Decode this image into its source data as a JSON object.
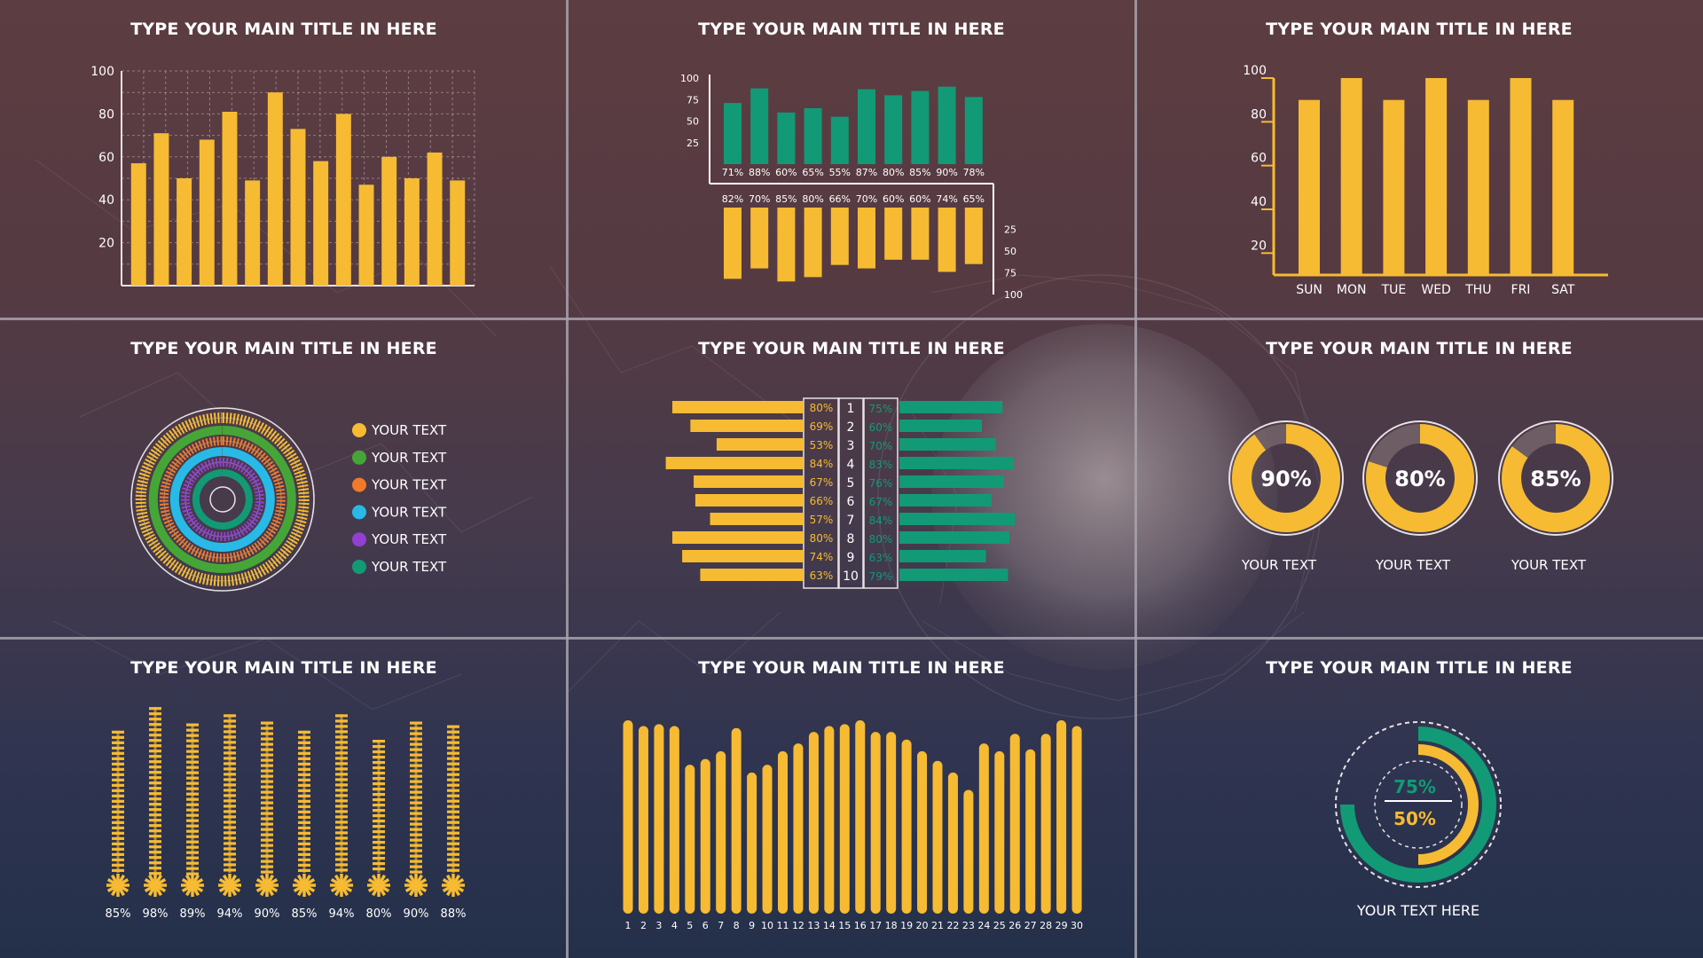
{
  "colors": {
    "yellow": "#f6bb33",
    "green": "#129a76",
    "orange": "#f07a2a",
    "cyan": "#29b9e6",
    "purple": "#9140d2",
    "lime": "#45a637",
    "white": "#ffffff",
    "grid": "#bfb3b6"
  },
  "panel_titles": [
    "TYPE YOUR MAIN TITLE IN HERE",
    "TYPE YOUR MAIN TITLE IN HERE",
    "TYPE YOUR MAIN TITLE IN HERE",
    "TYPE YOUR MAIN TITLE IN HERE",
    "TYPE YOUR MAIN TITLE IN HERE",
    "TYPE YOUR MAIN TITLE IN HERE",
    "TYPE YOUR MAIN TITLE IN HERE",
    "TYPE YOUR MAIN TITLE IN HERE",
    "TYPE YOUR MAIN TITLE IN HERE"
  ],
  "chart_data": [
    {
      "id": "c1",
      "type": "bar",
      "title": "TYPE YOUR MAIN TITLE IN HERE",
      "values": [
        57,
        71,
        50,
        68,
        81,
        49,
        90,
        73,
        58,
        80,
        47,
        60,
        50,
        62,
        49
      ],
      "ylim": [
        0,
        100
      ],
      "yticks": [
        20,
        40,
        60,
        80,
        100
      ],
      "grid": true
    },
    {
      "id": "c2",
      "type": "bar",
      "title": "TYPE YOUR MAIN TITLE IN HERE",
      "series": [
        {
          "values": [
            71,
            88,
            60,
            65,
            55,
            87,
            80,
            85,
            90,
            78
          ],
          "labels": [
            "71%",
            "88%",
            "60%",
            "65%",
            "55%",
            "87%",
            "80%",
            "85%",
            "90%",
            "78%"
          ]
        },
        {
          "values": [
            82,
            70,
            85,
            80,
            66,
            70,
            60,
            60,
            74,
            65
          ],
          "labels": [
            "82%",
            "70%",
            "85%",
            "80%",
            "66%",
            "70%",
            "60%",
            "60%",
            "74%",
            "65%"
          ]
        }
      ],
      "yticks_top": [
        25,
        50,
        75,
        100
      ],
      "yticks_bottom": [
        25,
        50,
        75,
        100
      ]
    },
    {
      "id": "c3",
      "type": "bar",
      "title": "TYPE YOUR MAIN TITLE IN HERE",
      "categories": [
        "SUN",
        "MON",
        "TUE",
        "WED",
        "THU",
        "FRI",
        "SAT"
      ],
      "values": [
        90,
        100,
        90,
        100,
        90,
        100,
        90
      ],
      "ylim": [
        10,
        100
      ],
      "yticks": [
        20,
        40,
        60,
        80,
        100
      ]
    },
    {
      "id": "c4",
      "type": "pie",
      "title": "TYPE YOUR MAIN TITLE IN HERE",
      "series": [
        {
          "name": "YOUR TEXT",
          "color": "yellow",
          "value": 100
        },
        {
          "name": "YOUR TEXT",
          "color": "lime",
          "value": 100
        },
        {
          "name": "YOUR TEXT",
          "color": "orange",
          "value": 100
        },
        {
          "name": "YOUR TEXT",
          "color": "cyan",
          "value": 100
        },
        {
          "name": "YOUR TEXT",
          "color": "purple",
          "value": 100
        },
        {
          "name": "YOUR TEXT",
          "color": "green",
          "value": 100
        }
      ],
      "legend": "right"
    },
    {
      "id": "c5",
      "type": "bar",
      "title": "TYPE YOUR MAIN TITLE IN HERE",
      "categories": [
        "1",
        "2",
        "3",
        "4",
        "5",
        "6",
        "7",
        "8",
        "9",
        "10"
      ],
      "series": [
        {
          "color": "yellow",
          "values": [
            80,
            69,
            53,
            84,
            67,
            66,
            57,
            80,
            74,
            63
          ],
          "labels": [
            "80%",
            "69%",
            "53%",
            "84%",
            "67%",
            "66%",
            "57%",
            "80%",
            "74%",
            "63%"
          ]
        },
        {
          "color": "green",
          "values": [
            75,
            60,
            70,
            83,
            76,
            67,
            84,
            80,
            63,
            79
          ],
          "labels": [
            "75%",
            "60%",
            "70%",
            "83%",
            "76%",
            "67%",
            "84%",
            "80%",
            "63%",
            "79%"
          ]
        }
      ]
    },
    {
      "id": "c6",
      "type": "pie",
      "title": "TYPE YOUR MAIN TITLE IN HERE",
      "values": [
        90,
        80,
        85
      ],
      "labels": [
        "90%",
        "80%",
        "85%"
      ],
      "captions": [
        "YOUR TEXT",
        "YOUR TEXT",
        "YOUR TEXT"
      ]
    },
    {
      "id": "c7",
      "type": "bar",
      "title": "TYPE YOUR MAIN TITLE IN HERE",
      "values": [
        85,
        98,
        89,
        94,
        90,
        85,
        94,
        80,
        90,
        88
      ],
      "labels": [
        "85%",
        "98%",
        "89%",
        "94%",
        "90%",
        "85%",
        "94%",
        "80%",
        "90%",
        "88%"
      ]
    },
    {
      "id": "c8",
      "type": "bar",
      "title": "TYPE YOUR MAIN TITLE IN HERE",
      "categories": [
        "1",
        "2",
        "3",
        "4",
        "5",
        "6",
        "7",
        "8",
        "9",
        "10",
        "11",
        "12",
        "13",
        "14",
        "15",
        "16",
        "17",
        "18",
        "19",
        "20",
        "21",
        "22",
        "23",
        "24",
        "25",
        "26",
        "27",
        "28",
        "29",
        "30"
      ],
      "values": [
        100,
        97,
        98,
        97,
        77,
        80,
        84,
        96,
        73,
        77,
        84,
        88,
        94,
        97,
        98,
        100,
        94,
        94,
        90,
        84,
        79,
        73,
        64,
        88,
        84,
        93,
        85,
        93,
        100,
        97
      ],
      "ylim": [
        0,
        100
      ]
    },
    {
      "id": "c9",
      "type": "pie",
      "title": "TYPE YOUR MAIN TITLE IN HERE",
      "values": [
        75,
        50
      ],
      "labels": [
        "75%",
        "50%"
      ],
      "caption": "YOUR TEXT HERE"
    }
  ]
}
